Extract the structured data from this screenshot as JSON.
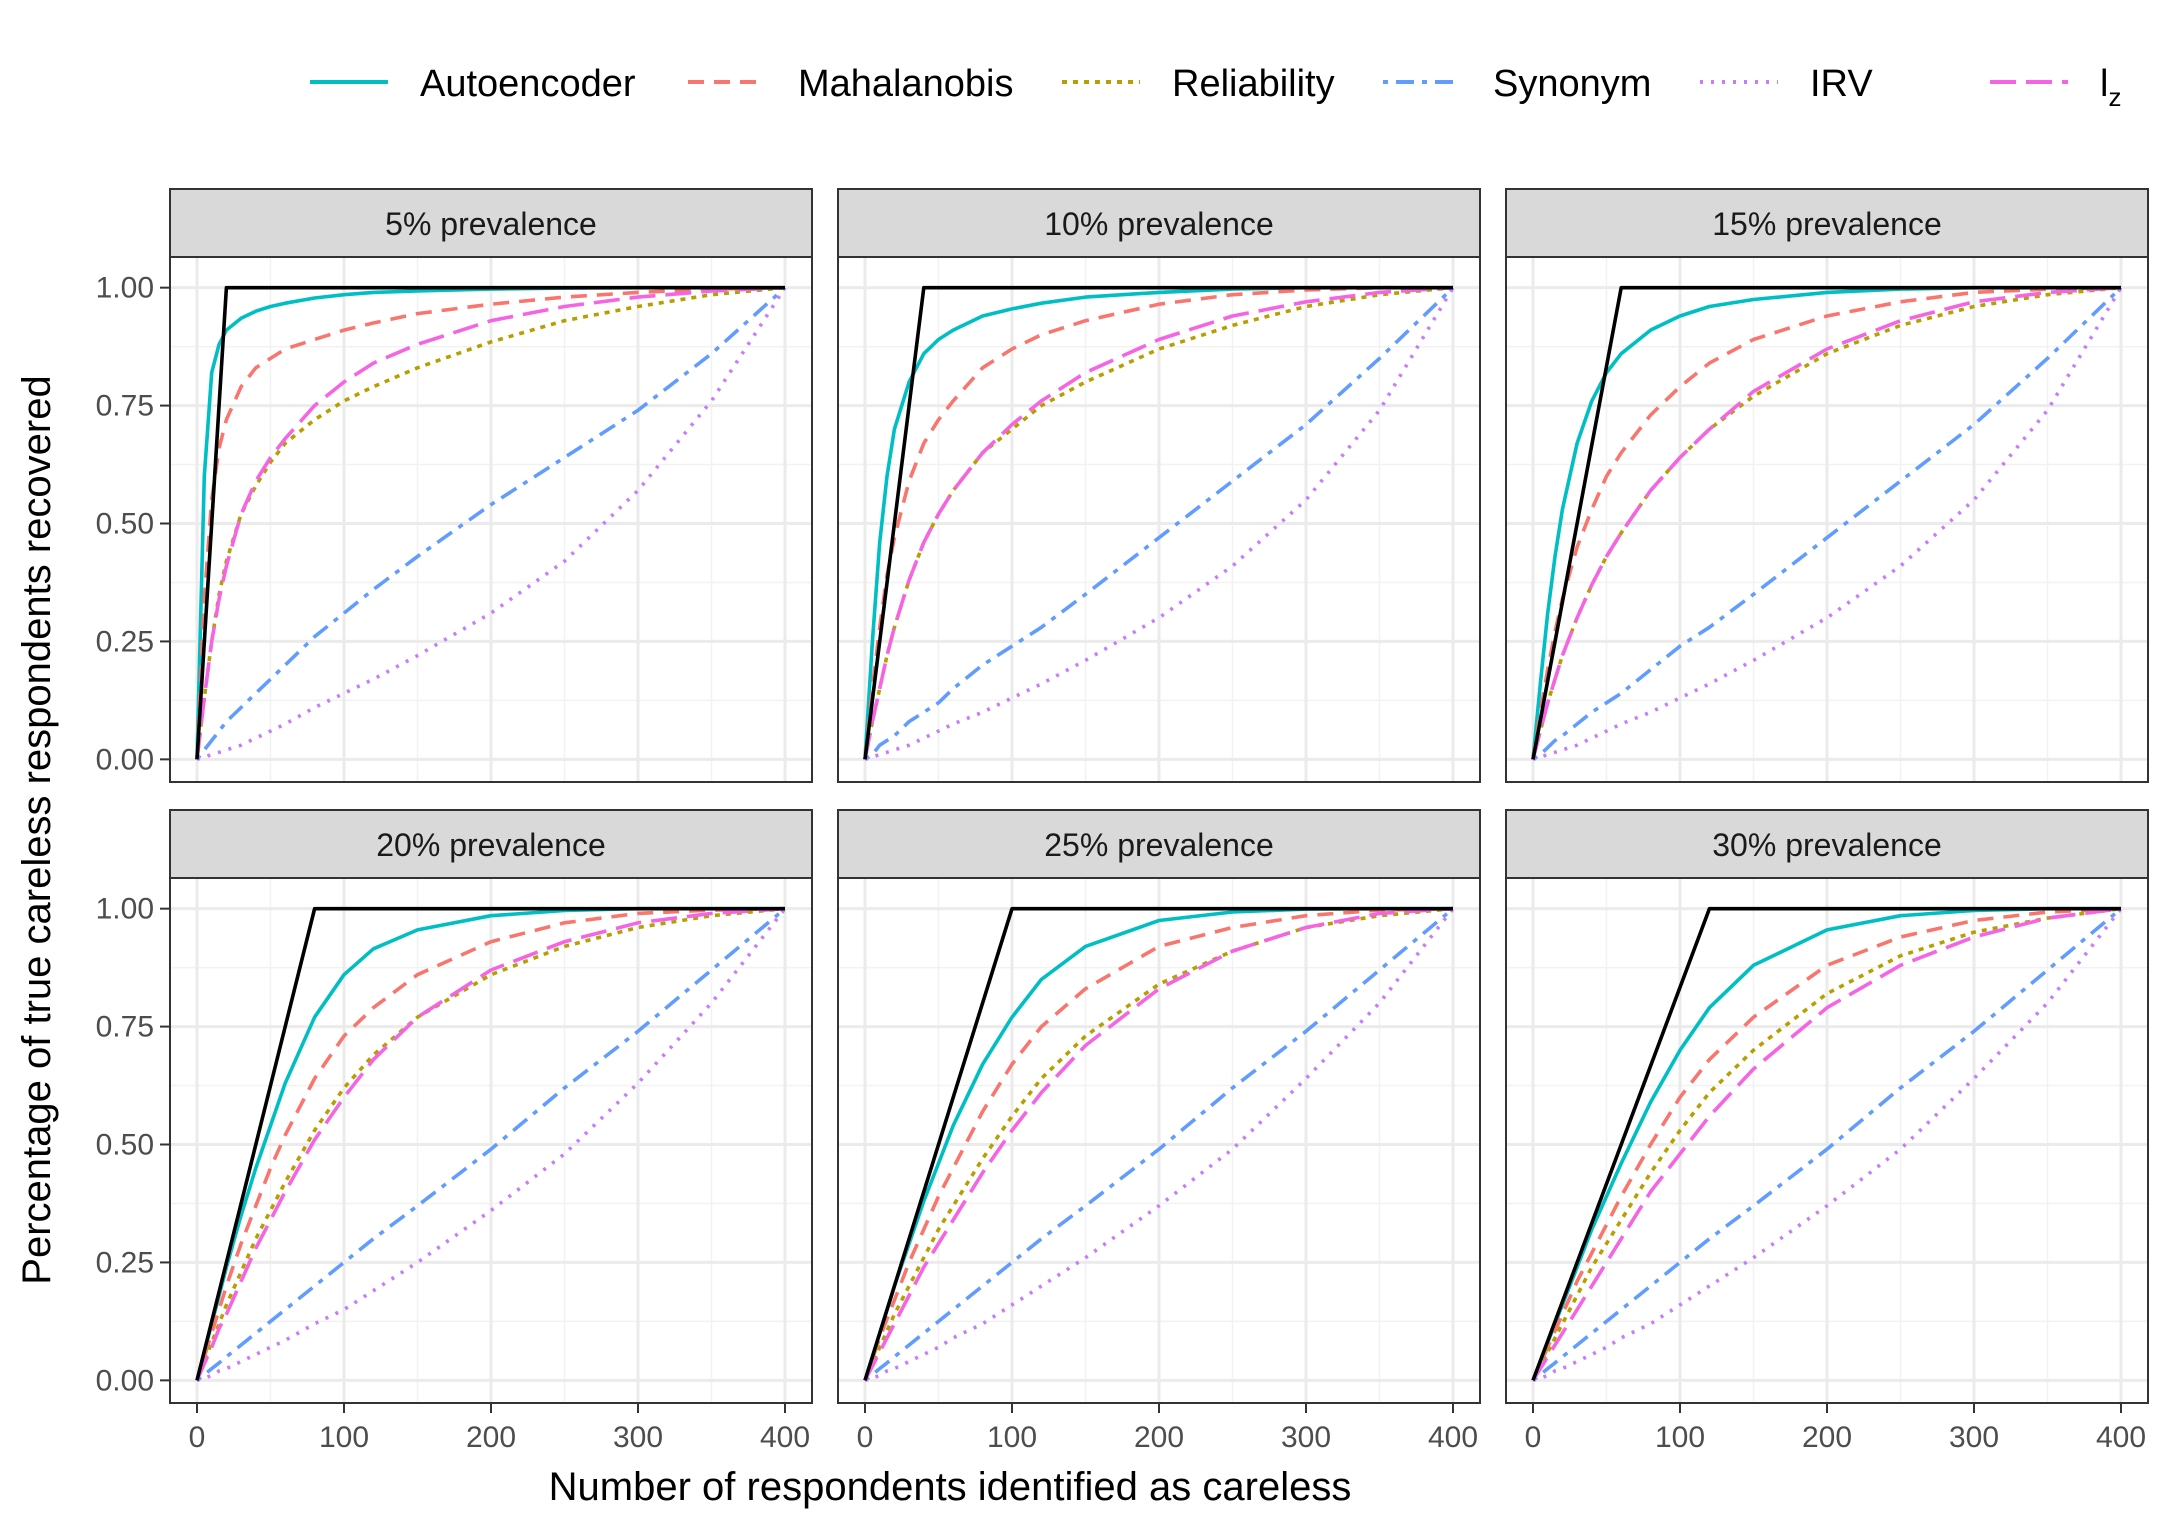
{
  "legend": {
    "items": [
      {
        "label": "Autoencoder",
        "color": "#00BFC4",
        "dash": "solid"
      },
      {
        "label": "Mahalanobis",
        "color": "#F8766D",
        "dash": "dashed"
      },
      {
        "label": "Reliability",
        "color": "#B79F00",
        "dash": "dotted"
      },
      {
        "label": "Synonym",
        "color": "#619CFF",
        "dash": "dotdash"
      },
      {
        "label": "IRV",
        "color": "#C77CFF",
        "dash": "dotted-fine"
      },
      {
        "label": "l",
        "sub": "z",
        "color": "#F564E3",
        "dash": "longdash"
      }
    ]
  },
  "axes": {
    "xlabel": "Number of respondents identified as careless",
    "ylabel": "Percentage of true careless respondents recovered",
    "xticks": [
      "0",
      "100",
      "200",
      "300",
      "400"
    ],
    "yticks": [
      "0.00",
      "0.25",
      "0.50",
      "0.75",
      "1.00"
    ]
  },
  "chart_data": {
    "type": "line",
    "layout": "facet-grid 2x3",
    "xlim": [
      0,
      400
    ],
    "ylim": [
      0,
      1
    ],
    "xlabel": "Number of respondents identified as careless",
    "ylabel": "Percentage of true careless respondents recovered",
    "legend_position": "top",
    "grid": true,
    "x": [
      0,
      5,
      10,
      15,
      20,
      30,
      40,
      50,
      60,
      80,
      100,
      120,
      150,
      200,
      250,
      300,
      350,
      400
    ],
    "panels": [
      {
        "title": "5% prevalence",
        "oracle": {
          "x": [
            0,
            20,
            400
          ],
          "y": [
            0,
            1,
            1
          ]
        },
        "series": [
          {
            "name": "Autoencoder",
            "values": [
              0,
              0.6,
              0.82,
              0.88,
              0.91,
              0.935,
              0.95,
              0.96,
              0.967,
              0.978,
              0.985,
              0.99,
              0.993,
              0.997,
              0.999,
              1,
              1,
              1
            ]
          },
          {
            "name": "Mahalanobis",
            "values": [
              0,
              0.34,
              0.55,
              0.66,
              0.72,
              0.79,
              0.83,
              0.85,
              0.87,
              0.89,
              0.91,
              0.925,
              0.945,
              0.965,
              0.98,
              0.99,
              0.997,
              1
            ]
          },
          {
            "name": "Reliability",
            "values": [
              0,
              0.13,
              0.25,
              0.35,
              0.42,
              0.52,
              0.58,
              0.63,
              0.67,
              0.72,
              0.76,
              0.79,
              0.83,
              0.885,
              0.93,
              0.96,
              0.985,
              1
            ]
          },
          {
            "name": "Synonym",
            "values": [
              0,
              0.02,
              0.04,
              0.06,
              0.08,
              0.11,
              0.14,
              0.17,
              0.2,
              0.26,
              0.31,
              0.36,
              0.43,
              0.54,
              0.64,
              0.74,
              0.86,
              1
            ]
          },
          {
            "name": "IRV",
            "values": [
              0,
              0.005,
              0.01,
              0.015,
              0.02,
              0.03,
              0.045,
              0.06,
              0.075,
              0.11,
              0.14,
              0.17,
              0.22,
              0.31,
              0.42,
              0.57,
              0.76,
              1
            ]
          },
          {
            "name": "lz",
            "values": [
              0,
              0.13,
              0.25,
              0.34,
              0.41,
              0.52,
              0.59,
              0.64,
              0.68,
              0.75,
              0.8,
              0.84,
              0.88,
              0.93,
              0.96,
              0.98,
              0.993,
              1
            ]
          }
        ]
      },
      {
        "title": "10% prevalence",
        "oracle": {
          "x": [
            0,
            40,
            400
          ],
          "y": [
            0,
            1,
            1
          ]
        },
        "series": [
          {
            "name": "Autoencoder",
            "values": [
              0,
              0.25,
              0.46,
              0.6,
              0.7,
              0.8,
              0.86,
              0.89,
              0.91,
              0.94,
              0.955,
              0.967,
              0.98,
              0.99,
              0.997,
              1,
              1,
              1
            ]
          },
          {
            "name": "Mahalanobis",
            "values": [
              0,
              0.15,
              0.28,
              0.39,
              0.47,
              0.59,
              0.67,
              0.72,
              0.76,
              0.83,
              0.87,
              0.9,
              0.93,
              0.965,
              0.985,
              0.995,
              1,
              1
            ]
          },
          {
            "name": "Reliability",
            "values": [
              0,
              0.08,
              0.15,
              0.22,
              0.28,
              0.38,
              0.46,
              0.52,
              0.57,
              0.65,
              0.7,
              0.75,
              0.8,
              0.87,
              0.92,
              0.96,
              0.985,
              1
            ]
          },
          {
            "name": "Synonym",
            "values": [
              0,
              0.01,
              0.03,
              0.04,
              0.05,
              0.08,
              0.1,
              0.12,
              0.15,
              0.2,
              0.24,
              0.28,
              0.35,
              0.47,
              0.59,
              0.71,
              0.85,
              1
            ]
          },
          {
            "name": "IRV",
            "values": [
              0,
              0.005,
              0.01,
              0.015,
              0.02,
              0.03,
              0.045,
              0.06,
              0.075,
              0.1,
              0.13,
              0.16,
              0.21,
              0.3,
              0.41,
              0.55,
              0.74,
              1
            ]
          },
          {
            "name": "lz",
            "values": [
              0,
              0.08,
              0.15,
              0.22,
              0.28,
              0.38,
              0.46,
              0.52,
              0.57,
              0.65,
              0.71,
              0.76,
              0.82,
              0.89,
              0.94,
              0.97,
              0.99,
              1
            ]
          }
        ]
      },
      {
        "title": "15% prevalence",
        "oracle": {
          "x": [
            0,
            60,
            400
          ],
          "y": [
            0,
            1,
            1
          ]
        },
        "series": [
          {
            "name": "Autoencoder",
            "values": [
              0,
              0.16,
              0.31,
              0.43,
              0.53,
              0.67,
              0.76,
              0.82,
              0.86,
              0.91,
              0.94,
              0.96,
              0.975,
              0.99,
              0.997,
              1,
              1,
              1
            ]
          },
          {
            "name": "Mahalanobis",
            "values": [
              0,
              0.1,
              0.19,
              0.27,
              0.34,
              0.45,
              0.53,
              0.6,
              0.65,
              0.73,
              0.79,
              0.84,
              0.89,
              0.94,
              0.97,
              0.99,
              0.997,
              1
            ]
          },
          {
            "name": "Reliability",
            "values": [
              0,
              0.06,
              0.12,
              0.17,
              0.22,
              0.3,
              0.37,
              0.43,
              0.48,
              0.57,
              0.64,
              0.7,
              0.77,
              0.86,
              0.92,
              0.96,
              0.985,
              1
            ]
          },
          {
            "name": "Synonym",
            "values": [
              0,
              0.01,
              0.025,
              0.04,
              0.05,
              0.075,
              0.1,
              0.12,
              0.14,
              0.19,
              0.24,
              0.28,
              0.35,
              0.47,
              0.59,
              0.71,
              0.85,
              1
            ]
          },
          {
            "name": "IRV",
            "values": [
              0,
              0.005,
              0.01,
              0.015,
              0.02,
              0.03,
              0.045,
              0.06,
              0.075,
              0.1,
              0.13,
              0.16,
              0.21,
              0.3,
              0.41,
              0.55,
              0.74,
              1
            ]
          },
          {
            "name": "lz",
            "values": [
              0,
              0.06,
              0.12,
              0.17,
              0.22,
              0.3,
              0.37,
              0.43,
              0.48,
              0.57,
              0.64,
              0.7,
              0.78,
              0.87,
              0.93,
              0.97,
              0.99,
              1
            ]
          }
        ]
      },
      {
        "title": "20% prevalence",
        "oracle": {
          "x": [
            0,
            80,
            400
          ],
          "y": [
            0,
            1,
            1
          ]
        },
        "series": [
          {
            "name": "Autoencoder",
            "values": [
              0,
              0.06,
              0.12,
              0.18,
              0.24,
              0.35,
              0.45,
              0.54,
              0.63,
              0.77,
              0.86,
              0.915,
              0.955,
              0.985,
              0.996,
              1,
              1,
              1
            ]
          },
          {
            "name": "Mahalanobis",
            "values": [
              0,
              0.05,
              0.1,
              0.15,
              0.2,
              0.29,
              0.37,
              0.45,
              0.52,
              0.64,
              0.73,
              0.79,
              0.86,
              0.93,
              0.97,
              0.99,
              0.997,
              1
            ]
          },
          {
            "name": "Reliability",
            "values": [
              0,
              0.04,
              0.08,
              0.12,
              0.16,
              0.23,
              0.3,
              0.36,
              0.42,
              0.53,
              0.62,
              0.69,
              0.77,
              0.86,
              0.92,
              0.96,
              0.985,
              1
            ]
          },
          {
            "name": "Synonym",
            "values": [
              0,
              0.012,
              0.025,
              0.037,
              0.05,
              0.075,
              0.1,
              0.125,
              0.15,
              0.2,
              0.25,
              0.3,
              0.37,
              0.49,
              0.62,
              0.74,
              0.87,
              1
            ]
          },
          {
            "name": "IRV",
            "values": [
              0,
              0.005,
              0.01,
              0.02,
              0.025,
              0.04,
              0.055,
              0.07,
              0.085,
              0.12,
              0.15,
              0.19,
              0.25,
              0.36,
              0.48,
              0.63,
              0.8,
              1
            ]
          },
          {
            "name": "lz",
            "values": [
              0,
              0.035,
              0.07,
              0.11,
              0.14,
              0.21,
              0.28,
              0.34,
              0.4,
              0.51,
              0.6,
              0.68,
              0.77,
              0.87,
              0.93,
              0.97,
              0.99,
              1
            ]
          }
        ]
      },
      {
        "title": "25% prevalence",
        "oracle": {
          "x": [
            0,
            100,
            400
          ],
          "y": [
            0,
            1,
            1
          ]
        },
        "series": [
          {
            "name": "Autoencoder",
            "values": [
              0,
              0.05,
              0.1,
              0.15,
              0.2,
              0.29,
              0.38,
              0.46,
              0.54,
              0.67,
              0.77,
              0.85,
              0.92,
              0.975,
              0.993,
              0.999,
              1,
              1
            ]
          },
          {
            "name": "Mahalanobis",
            "values": [
              0,
              0.045,
              0.09,
              0.13,
              0.17,
              0.25,
              0.32,
              0.39,
              0.45,
              0.57,
              0.67,
              0.75,
              0.83,
              0.92,
              0.96,
              0.985,
              0.997,
              1
            ]
          },
          {
            "name": "Reliability",
            "values": [
              0,
              0.035,
              0.07,
              0.105,
              0.14,
              0.2,
              0.26,
              0.32,
              0.37,
              0.47,
              0.56,
              0.64,
              0.73,
              0.84,
              0.91,
              0.96,
              0.985,
              1
            ]
          },
          {
            "name": "Synonym",
            "values": [
              0,
              0.012,
              0.025,
              0.037,
              0.05,
              0.075,
              0.1,
              0.125,
              0.15,
              0.2,
              0.25,
              0.3,
              0.37,
              0.49,
              0.62,
              0.74,
              0.87,
              1
            ]
          },
          {
            "name": "IRV",
            "values": [
              0,
              0.005,
              0.01,
              0.02,
              0.025,
              0.04,
              0.055,
              0.07,
              0.09,
              0.12,
              0.16,
              0.2,
              0.26,
              0.37,
              0.49,
              0.64,
              0.8,
              1
            ]
          },
          {
            "name": "lz",
            "values": [
              0,
              0.03,
              0.06,
              0.09,
              0.12,
              0.18,
              0.24,
              0.29,
              0.34,
              0.44,
              0.53,
              0.61,
              0.71,
              0.83,
              0.91,
              0.96,
              0.99,
              1
            ]
          }
        ]
      },
      {
        "title": "30% prevalence",
        "oracle": {
          "x": [
            0,
            120,
            400
          ],
          "y": [
            0,
            1,
            1
          ]
        },
        "series": [
          {
            "name": "Autoencoder",
            "values": [
              0,
              0.04,
              0.08,
              0.12,
              0.16,
              0.24,
              0.32,
              0.39,
              0.46,
              0.59,
              0.7,
              0.79,
              0.88,
              0.955,
              0.985,
              0.996,
              1,
              1
            ]
          },
          {
            "name": "Mahalanobis",
            "values": [
              0,
              0.035,
              0.07,
              0.105,
              0.14,
              0.21,
              0.27,
              0.33,
              0.39,
              0.5,
              0.6,
              0.68,
              0.77,
              0.88,
              0.94,
              0.975,
              0.993,
              1
            ]
          },
          {
            "name": "Reliability",
            "values": [
              0,
              0.03,
              0.06,
              0.09,
              0.12,
              0.18,
              0.24,
              0.29,
              0.34,
              0.44,
              0.53,
              0.61,
              0.7,
              0.82,
              0.9,
              0.95,
              0.98,
              1
            ]
          },
          {
            "name": "Synonym",
            "values": [
              0,
              0.012,
              0.025,
              0.037,
              0.05,
              0.075,
              0.1,
              0.125,
              0.15,
              0.2,
              0.25,
              0.3,
              0.37,
              0.49,
              0.62,
              0.74,
              0.87,
              1
            ]
          },
          {
            "name": "IRV",
            "values": [
              0,
              0.005,
              0.01,
              0.02,
              0.025,
              0.04,
              0.055,
              0.07,
              0.09,
              0.12,
              0.16,
              0.2,
              0.26,
              0.37,
              0.49,
              0.64,
              0.8,
              1
            ]
          },
          {
            "name": "lz",
            "values": [
              0,
              0.025,
              0.05,
              0.075,
              0.1,
              0.15,
              0.2,
              0.25,
              0.3,
              0.4,
              0.48,
              0.56,
              0.66,
              0.79,
              0.88,
              0.94,
              0.98,
              1
            ]
          }
        ]
      }
    ]
  }
}
